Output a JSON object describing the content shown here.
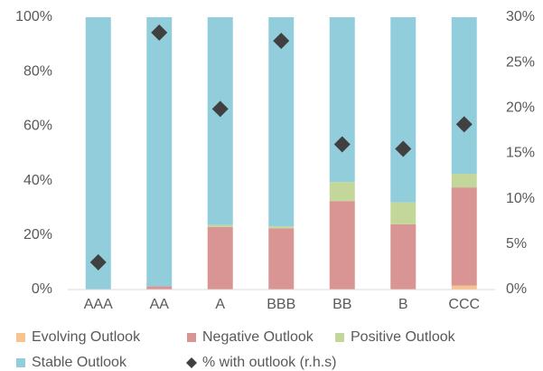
{
  "chart_data": {
    "type": "bar",
    "stacked": true,
    "categories": [
      "AAA",
      "AA",
      "A",
      "BBB",
      "BB",
      "B",
      "CCC"
    ],
    "series": [
      {
        "name": "Evolving Outlook",
        "color": "#f9c38f",
        "values": [
          0,
          0,
          0,
          0,
          0,
          0,
          1.5
        ]
      },
      {
        "name": "Negative Outlook",
        "color": "#d99594",
        "values": [
          0,
          1.2,
          23,
          22.5,
          32.5,
          24,
          36
        ]
      },
      {
        "name": "Positive Outlook",
        "color": "#c4d79b",
        "values": [
          0,
          0,
          0.7,
          0.7,
          7,
          8,
          5
        ]
      },
      {
        "name": "Stable Outlook",
        "color": "#92cddc",
        "values": [
          100,
          98.8,
          76.3,
          76.8,
          60.5,
          68,
          57.5
        ]
      },
      {
        "name": "% with outlook (r.h.s)",
        "color": "#404040",
        "type": "scatter",
        "marker": "diamond",
        "axis": "y2",
        "values": [
          3,
          28.3,
          19.9,
          27.4,
          16,
          15.5,
          18.2
        ]
      }
    ],
    "ylim": [
      0,
      100
    ],
    "yticks": [
      {
        "value": 0,
        "label": "0%"
      },
      {
        "value": 20,
        "label": "20%"
      },
      {
        "value": 40,
        "label": "40%"
      },
      {
        "value": 60,
        "label": "60%"
      },
      {
        "value": 80,
        "label": "80%"
      },
      {
        "value": 100,
        "label": "100%"
      }
    ],
    "y2lim": [
      0,
      30
    ],
    "y2ticks": [
      {
        "value": 0,
        "label": "0%"
      },
      {
        "value": 5,
        "label": "5%"
      },
      {
        "value": 10,
        "label": "10%"
      },
      {
        "value": 15,
        "label": "15%"
      },
      {
        "value": 20,
        "label": "20%"
      },
      {
        "value": 25,
        "label": "25%"
      },
      {
        "value": 30,
        "label": "30%"
      }
    ],
    "grid": false
  }
}
